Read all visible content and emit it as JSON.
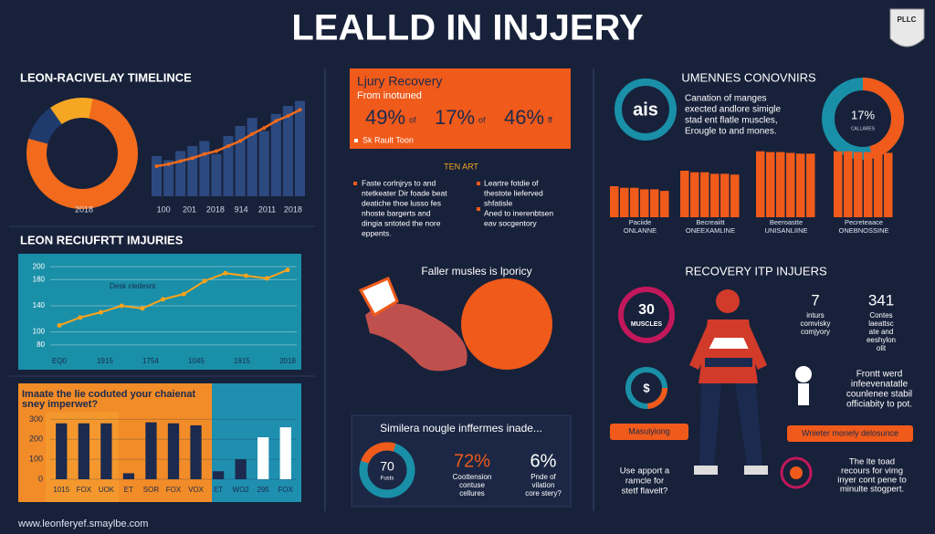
{
  "title": "LEALLD IN INJJERY",
  "logo": "PLLC",
  "timeline": {
    "heading": "LEON-RACIVELAY TIMELINCE",
    "donut_label": "2018",
    "bars": [
      40,
      36,
      45,
      50,
      55,
      42,
      60,
      70,
      78,
      65,
      82,
      90,
      95
    ],
    "line": [
      30,
      32,
      35,
      38,
      42,
      45,
      50,
      55,
      62,
      68,
      75,
      80,
      86
    ],
    "ylim": [
      0,
      100
    ],
    "xlabels": [
      "100",
      "201",
      "2018",
      "914",
      "2011",
      "2018"
    ]
  },
  "recent": {
    "heading": "LEON RECIUFRTT IMJURIES",
    "ylim": [
      70,
      210
    ],
    "yticks": [
      80,
      100,
      140,
      180,
      200
    ],
    "values": [
      110,
      122,
      130,
      140,
      136,
      150,
      158,
      178,
      190,
      186,
      182,
      195
    ],
    "annotation": "Desk cledesnt",
    "xlabels": [
      "EQ0",
      "1915",
      "1754",
      "1045",
      "1915",
      "2018"
    ]
  },
  "survey": {
    "heading": [
      "Imaate the lie coduted your chaienat",
      "sney imperwet?"
    ],
    "ylim": [
      0,
      320
    ],
    "yticks": [
      0,
      100,
      200,
      300
    ],
    "values": [
      280,
      280,
      280,
      30,
      285,
      280,
      270,
      40,
      100,
      210,
      260
    ],
    "colors": [
      "#1b2a4e",
      "#1b2a4e",
      "#1b2a4e",
      "#1b2a4e",
      "#1b2a4e",
      "#1b2a4e",
      "#1b2a4e",
      "#1b2a4e",
      "#1b2a4e",
      "#ffffff",
      "#ffffff"
    ],
    "xlabels": [
      "1015",
      "FOX",
      "UOK",
      "ET",
      "SOR",
      "FOX",
      "VOX",
      "ET",
      "WO2",
      "295",
      "FOX"
    ]
  },
  "recovery_box": {
    "title": "Ljury Recovery",
    "subtitle": "From inotuned",
    "stats": [
      {
        "value": "49%",
        "unit": "of"
      },
      {
        "value": "17%",
        "unit": "of"
      },
      {
        "value": "46%",
        "unit": "ff"
      }
    ],
    "note": "Sk Rault Toon"
  },
  "facts": {
    "heading": "TEN ART",
    "left": [
      "Faste corlnjrys to and",
      "ntetkeater Dir foade beat",
      "deatiche thoe lusso fes",
      "nhoste bargerts and",
      "dingia sntoted the nore",
      "eppents."
    ],
    "right": [
      "Leartre fotdie of",
      "thestote lieferved",
      "shfatisle",
      "Aned to inerenbtsen",
      "eav socgentory"
    ]
  },
  "illustration_caption": "Faller musles is lporicy",
  "bottom_box": {
    "heading": "Similera nougle inffermes inade...",
    "donut_value": "70",
    "donut_label": "Fusts",
    "stats": [
      {
        "value": "72%",
        "lines": [
          "Coottension",
          "contuse",
          "cellures"
        ]
      },
      {
        "value": "6%",
        "lines": [
          "Pnde of",
          "vilation",
          "core stery?"
        ]
      }
    ]
  },
  "convictions": {
    "heading": "UMENNES CONOVNIRS",
    "badge": "ais",
    "text": [
      "Canation of manges",
      "exected andlore simigle",
      "stad ent flatle muscles,",
      "Erougle to and mones."
    ],
    "donut_value": "17%",
    "donut_caption": "CALLARES",
    "ylim": [
      0,
      100
    ],
    "groups": [
      {
        "label": [
          "Paciide",
          "ONLANNE"
        ],
        "values": [
          40,
          38,
          38,
          36,
          36,
          34
        ]
      },
      {
        "label": [
          "Becreaiitt",
          "ONEEXAMLINE"
        ],
        "values": [
          60,
          58,
          58,
          56,
          56,
          55
        ]
      },
      {
        "label": [
          "Beeroastte",
          "UNISANLIINE"
        ],
        "values": [
          85,
          84,
          84,
          83,
          82,
          82
        ]
      },
      {
        "label": [
          "Pecreteaace",
          "ONEBNOSSINE"
        ],
        "values": [
          85,
          85,
          84,
          84,
          83,
          83
        ]
      }
    ]
  },
  "recovery": {
    "heading": "RECOVERY ITP INJUERS",
    "badge": [
      "30",
      "MUSCLES"
    ],
    "stat1": {
      "value": "7",
      "lines": [
        "inturs",
        "comvisky",
        "comjyory"
      ]
    },
    "stat2": {
      "value": "341",
      "lines": [
        "Contes",
        "laeattsc",
        "ate and",
        "eeshylon",
        "olit"
      ]
    },
    "dollar": "$",
    "front": [
      "Frontt werd",
      "infeevenatatle",
      "counlenee stabil",
      "officiabity to pot."
    ],
    "tag1": "Masulyiong",
    "tag2": "Wnieter monely delosunce",
    "use": [
      "Use apport a",
      "ramcle for",
      "stetf flavelt?"
    ],
    "tail": [
      "The lte toad",
      "recours for vimg",
      "inyer cont pene to",
      "minulte stogpert."
    ]
  },
  "footer": "www.leonferyef.smaylbe.com"
}
